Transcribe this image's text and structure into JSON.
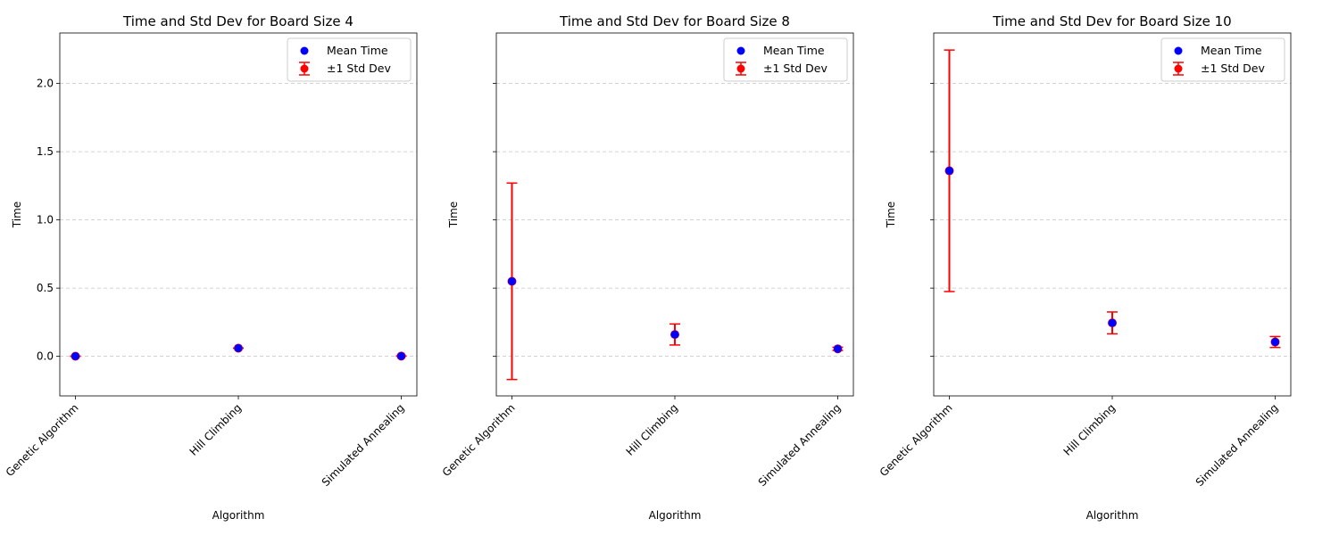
{
  "chart_data": [
    {
      "type": "scatter",
      "title": "Time and Std Dev for Board Size 4",
      "xlabel": "Algorithm",
      "ylabel": "Time",
      "categories": [
        "Genetic Algorithm",
        "Hill Climbing",
        "Simulated Annealing"
      ],
      "ylim": [
        -0.29,
        2.37
      ],
      "yticks": [
        0.0,
        0.5,
        1.0,
        1.5,
        2.0
      ],
      "ytick_labels": [
        "0.0",
        "0.5",
        "1.0",
        "1.5",
        "2.0"
      ],
      "grid": "y-dashed",
      "legend": {
        "position": "top-right",
        "entries": [
          "Mean Time",
          "±1 Std Dev"
        ]
      },
      "series": [
        {
          "name": "Mean Time",
          "kind": "points",
          "color": "#0000ff",
          "values": [
            0.001,
            0.06,
            0.002
          ]
        },
        {
          "name": "±1 Std Dev",
          "kind": "errorbar",
          "color": "#ff0000",
          "values": [
            0.001,
            0.001,
            0.001
          ]
        }
      ]
    },
    {
      "type": "scatter",
      "title": "Time and Std Dev for Board Size 8",
      "xlabel": "Algorithm",
      "ylabel": "Time",
      "categories": [
        "Genetic Algorithm",
        "Hill Climbing",
        "Simulated Annealing"
      ],
      "ylim": [
        -0.29,
        2.37
      ],
      "yticks": [
        0.0,
        0.5,
        1.0,
        1.5,
        2.0
      ],
      "ytick_labels": [
        "",
        "",
        "",
        "",
        ""
      ],
      "grid": "y-dashed",
      "legend": {
        "position": "top-right",
        "entries": [
          "Mean Time",
          "±1 Std Dev"
        ]
      },
      "series": [
        {
          "name": "Mean Time",
          "kind": "points",
          "color": "#0000ff",
          "values": [
            0.55,
            0.16,
            0.055
          ]
        },
        {
          "name": "±1 Std Dev",
          "kind": "errorbar",
          "color": "#ff0000",
          "values": [
            0.72,
            0.077,
            0.012
          ]
        }
      ]
    },
    {
      "type": "scatter",
      "title": "Time and Std Dev for Board Size 10",
      "xlabel": "Algorithm",
      "ylabel": "Time",
      "categories": [
        "Genetic Algorithm",
        "Hill Climbing",
        "Simulated Annealing"
      ],
      "ylim": [
        -0.29,
        2.37
      ],
      "yticks": [
        0.0,
        0.5,
        1.0,
        1.5,
        2.0
      ],
      "ytick_labels": [
        "",
        "",
        "",
        "",
        ""
      ],
      "grid": "y-dashed",
      "legend": {
        "position": "top-right",
        "entries": [
          "Mean Time",
          "±1 Std Dev"
        ]
      },
      "series": [
        {
          "name": "Mean Time",
          "kind": "points",
          "color": "#0000ff",
          "values": [
            1.36,
            0.245,
            0.105
          ]
        },
        {
          "name": "±1 Std Dev",
          "kind": "errorbar",
          "color": "#ff0000",
          "values": [
            0.885,
            0.08,
            0.04
          ]
        }
      ]
    }
  ]
}
